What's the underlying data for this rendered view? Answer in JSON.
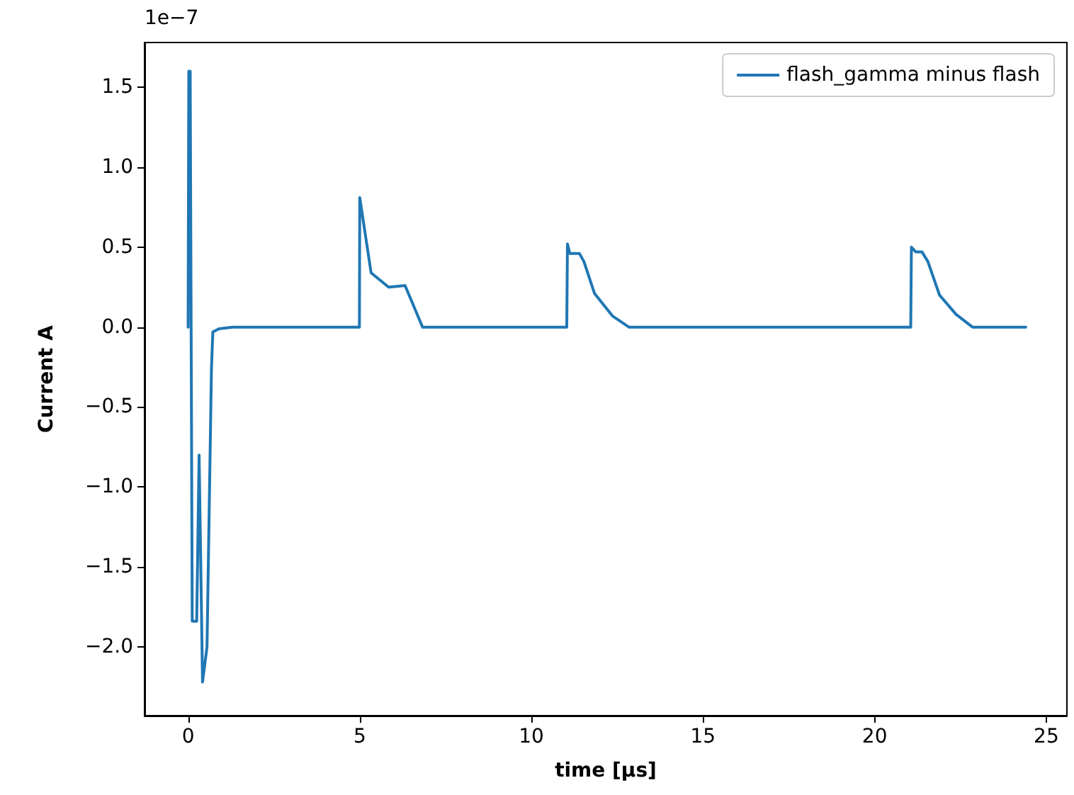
{
  "chart_data": {
    "type": "line",
    "xlabel": "time [μs]",
    "ylabel": "Current A",
    "annotations": [
      "1e−7"
    ],
    "series": [
      {
        "name": "flash_gamma minus flash",
        "color": "#1f77b4",
        "x": [
          0,
          0.02,
          0.06,
          0.12,
          0.25,
          0.32,
          0.42,
          0.55,
          0.68,
          0.72,
          0.9,
          1.3,
          4.99,
          5.0,
          5.33,
          5.84,
          6.32,
          6.83,
          11.03,
          11.05,
          11.12,
          11.4,
          11.53,
          11.84,
          12.36,
          12.84,
          21.05,
          21.07,
          21.2,
          21.38,
          21.55,
          21.89,
          22.37,
          22.85,
          24.4
        ],
        "values": [
          0,
          1.6,
          1.6,
          -1.84,
          -1.84,
          -0.8,
          -2.22,
          -2.0,
          -0.26,
          -0.03,
          -0.01,
          0,
          0,
          0.81,
          0.34,
          0.25,
          0.26,
          0,
          0,
          0.52,
          0.46,
          0.46,
          0.41,
          0.21,
          0.07,
          0,
          0,
          0.5,
          0.47,
          0.47,
          0.41,
          0.2,
          0.08,
          0,
          0
        ]
      }
    ],
    "xlim": [
      -1.27,
      25.6
    ],
    "xticks": [
      0,
      5,
      10,
      15,
      20,
      25
    ],
    "ylim": [
      -2.43,
      1.78
    ],
    "yticks": [
      {
        "value": -2.0,
        "label": "−2.0"
      },
      {
        "value": -1.5,
        "label": "−1.5"
      },
      {
        "value": -1.0,
        "label": "−1.0"
      },
      {
        "value": -0.5,
        "label": "−0.5"
      },
      {
        "value": 0,
        "label": "0.0"
      },
      {
        "value": 0.5,
        "label": "0.5"
      },
      {
        "value": 1.0,
        "label": "1.0"
      },
      {
        "value": 1.5,
        "label": "1.5"
      }
    ],
    "grid": false,
    "legend": "top right",
    "marker": "none",
    "line_style": "solid"
  }
}
